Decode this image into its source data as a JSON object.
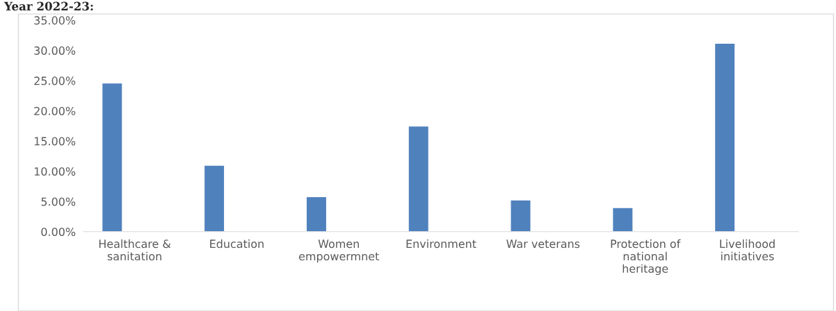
{
  "chart_data": {
    "type": "bar",
    "title": "Year 2022-23:",
    "categories": [
      "Healthcare & sanitation",
      "Education",
      "Women empowermnet",
      "Environment",
      "War veterans",
      "Protection of national heritage",
      "Livelihood initiatives"
    ],
    "values": [
      24.6,
      11.0,
      5.8,
      17.5,
      5.25,
      4.0,
      31.2
    ],
    "color": "#4f81bd",
    "ylim": [
      0,
      35
    ],
    "yticks": [
      {
        "value": 0,
        "label": "0.00%"
      },
      {
        "value": 5,
        "label": "5.00%"
      },
      {
        "value": 10,
        "label": "10.00%"
      },
      {
        "value": 15,
        "label": "15.00%"
      },
      {
        "value": 20,
        "label": "20.00%"
      },
      {
        "value": 25,
        "label": "25.00%"
      },
      {
        "value": 30,
        "label": "30.00%"
      },
      {
        "value": 35,
        "label": "35.00%"
      }
    ],
    "grid": false
  }
}
